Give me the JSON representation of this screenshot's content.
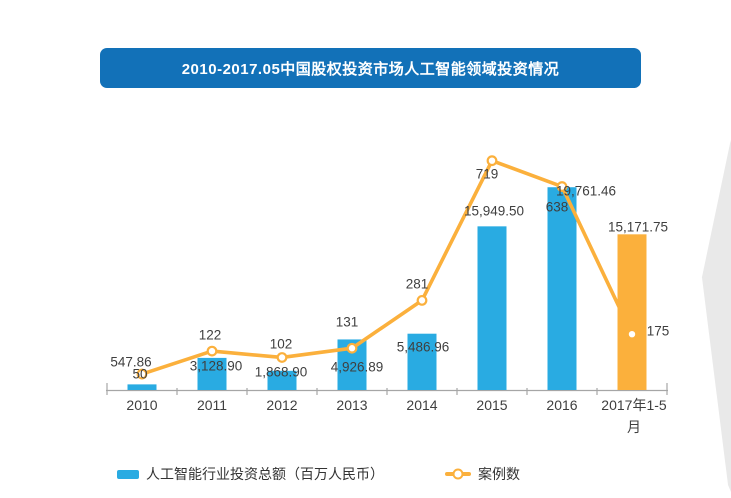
{
  "title": {
    "text": "2010-2017.05中国股权投资市场人工智能领域投资情况",
    "bg_color": "#1271B8",
    "text_color": "#FFFFFF"
  },
  "colors": {
    "bar_blue": "#29ABE2",
    "highlight_orange": "#FBB03C",
    "line_orange": "#FBB03C",
    "axis_gray": "#A6A6A6",
    "label_gray": "#3F3F3F",
    "deco_gray": "#E9E9E9"
  },
  "legend": [
    {
      "type": "bar",
      "label": "人工智能行业投资总额（百万人民币）",
      "color": "#29ABE2"
    },
    {
      "type": "line",
      "label": "案例数",
      "color": "#FBB03C"
    }
  ],
  "chart_data": {
    "type": "combo-bar-line",
    "title": "2010-2017.05中国股权投资市场人工智能领域投资情况",
    "categories": [
      "2010",
      "2011",
      "2012",
      "2013",
      "2014",
      "2015",
      "2016",
      "2017年1-5月"
    ],
    "series": [
      {
        "name": "人工智能行业投资总额（百万人民币）",
        "type": "bar",
        "color": "#29ABE2",
        "bar_colors": [
          "#29ABE2",
          "#29ABE2",
          "#29ABE2",
          "#29ABE2",
          "#29ABE2",
          "#29ABE2",
          "#29ABE2",
          "#FBB03C"
        ],
        "values": [
          547.86,
          3128.9,
          1868.9,
          4926.89,
          5486.96,
          15949.5,
          19761.46,
          15171.75
        ],
        "labels": [
          "547.86",
          "3,128.90",
          "1,868.90",
          "4,926.89",
          "5,486.96",
          "15,949.50",
          "19,761.46",
          "15,171.75"
        ]
      },
      {
        "name": "案例数",
        "type": "line",
        "color": "#FBB03C",
        "marker": "circle-white-fill",
        "values": [
          50,
          122,
          102,
          131,
          281,
          719,
          638,
          175
        ],
        "labels": [
          "50",
          "122",
          "102",
          "131",
          "281",
          "719",
          "638",
          "175"
        ]
      }
    ],
    "bar_axis_max": 23000,
    "line_axis_max": 740,
    "grid": false,
    "y_axis_visible": false,
    "legend_position": "bottom"
  }
}
